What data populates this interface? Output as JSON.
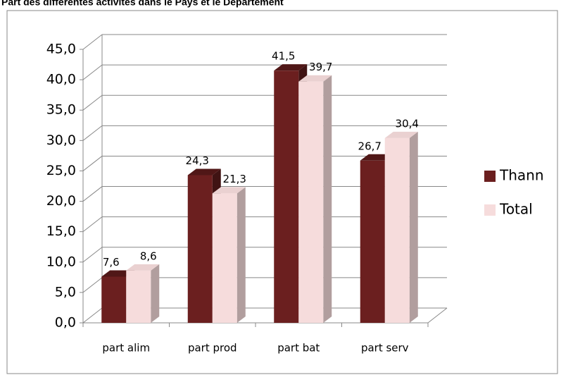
{
  "chart_data": {
    "type": "bar3d",
    "title": "Part des différentes activités dans le Pays et le Département",
    "categories": [
      "part alim",
      "part prod",
      "part bat",
      "part serv"
    ],
    "series": [
      {
        "name": "Thann",
        "color": "#6b1f1f",
        "values": [
          7.6,
          24.3,
          41.5,
          26.7
        ],
        "value_labels": [
          "7,6",
          "24,3",
          "41,5",
          "26,7"
        ]
      },
      {
        "name": "Total",
        "color": "#f6dcdc",
        "values": [
          8.6,
          21.3,
          39.7,
          30.4
        ],
        "value_labels": [
          "8,6",
          "21,3",
          "39,7",
          "30,4"
        ]
      }
    ],
    "ylim": [
      0,
      45
    ],
    "yticks": [
      {
        "value": 0,
        "label": "0,0"
      },
      {
        "value": 5,
        "label": "5,0"
      },
      {
        "value": 10,
        "label": "10,0"
      },
      {
        "value": 15,
        "label": "15,0"
      },
      {
        "value": 20,
        "label": "20,0"
      },
      {
        "value": 25,
        "label": "25,0"
      },
      {
        "value": 30,
        "label": "30,0"
      },
      {
        "value": 35,
        "label": "35,0"
      },
      {
        "value": 40,
        "label": "40,0"
      },
      {
        "value": 45,
        "label": "45,0"
      }
    ],
    "grid": true,
    "legend": "right"
  }
}
